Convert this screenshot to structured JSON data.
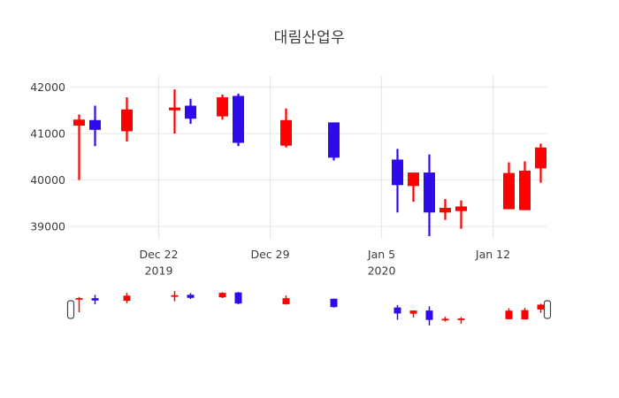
{
  "title": "대림산업우",
  "colors": {
    "up": "#FF0000",
    "down": "#2E0BEA",
    "grid": "#e9e9e9",
    "tick_text": "#3c3c3c",
    "title_text": "#3a3a3a",
    "background": "#ffffff",
    "slider_handle_fill": "#ffffff",
    "slider_handle_border": "#444444"
  },
  "chart_data": {
    "type": "candlestick",
    "title": "대림산업우",
    "xlabel": "",
    "ylabel": "",
    "grid": true,
    "legend": false,
    "rangeslider": true,
    "up_color_meaning": "close >= open (red, Korean convention)",
    "down_color_meaning": "close < open (blue)",
    "x_origin": "2019-12-22",
    "x_range": [
      "2019-12-16",
      "2020-01-16"
    ],
    "ylim": [
      38760,
      42200
    ],
    "y_ticks": [
      {
        "value": 39000,
        "label": "39000"
      },
      {
        "value": 40000,
        "label": "40000"
      },
      {
        "value": 41000,
        "label": "41000"
      },
      {
        "value": 42000,
        "label": "42000"
      }
    ],
    "x_ticks": [
      {
        "date": "2019-12-22",
        "line1": "Dec 22",
        "line2": "2019"
      },
      {
        "date": "2019-12-29",
        "line1": "Dec 29",
        "line2": ""
      },
      {
        "date": "2020-01-05",
        "line1": "Jan 5",
        "line2": "2020"
      },
      {
        "date": "2020-01-12",
        "line1": "Jan 12",
        "line2": ""
      }
    ],
    "candles": [
      {
        "date": "2019-12-17",
        "open": 41170,
        "high": 41410,
        "low": 40000,
        "close": 41300
      },
      {
        "date": "2019-12-18",
        "open": 41290,
        "high": 41600,
        "low": 40730,
        "close": 41080
      },
      {
        "date": "2019-12-20",
        "open": 41050,
        "high": 41780,
        "low": 40830,
        "close": 41520
      },
      {
        "date": "2019-12-23",
        "open": 41500,
        "high": 41950,
        "low": 41000,
        "close": 41560
      },
      {
        "date": "2019-12-24",
        "open": 41600,
        "high": 41750,
        "low": 41210,
        "close": 41320
      },
      {
        "date": "2019-12-26",
        "open": 41370,
        "high": 41840,
        "low": 41300,
        "close": 41780
      },
      {
        "date": "2019-12-27",
        "open": 41810,
        "high": 41860,
        "low": 40730,
        "close": 40800
      },
      {
        "date": "2019-12-30",
        "open": 40740,
        "high": 41540,
        "low": 40700,
        "close": 41290
      },
      {
        "date": "2020-01-02",
        "open": 41240,
        "high": 41240,
        "low": 40420,
        "close": 40480
      },
      {
        "date": "2020-01-06",
        "open": 40440,
        "high": 40670,
        "low": 39300,
        "close": 39890
      },
      {
        "date": "2020-01-07",
        "open": 39870,
        "high": 40160,
        "low": 39530,
        "close": 40160
      },
      {
        "date": "2020-01-08",
        "open": 40160,
        "high": 40550,
        "low": 38790,
        "close": 39300
      },
      {
        "date": "2020-01-09",
        "open": 39300,
        "high": 39590,
        "low": 39140,
        "close": 39400
      },
      {
        "date": "2020-01-10",
        "open": 39330,
        "high": 39560,
        "low": 38950,
        "close": 39430
      },
      {
        "date": "2020-01-13",
        "open": 39370,
        "high": 40380,
        "low": 39370,
        "close": 40150
      },
      {
        "date": "2020-01-14",
        "open": 39350,
        "high": 40400,
        "low": 39350,
        "close": 40200
      },
      {
        "date": "2020-01-15",
        "open": 40250,
        "high": 40780,
        "low": 39940,
        "close": 40700
      }
    ]
  }
}
